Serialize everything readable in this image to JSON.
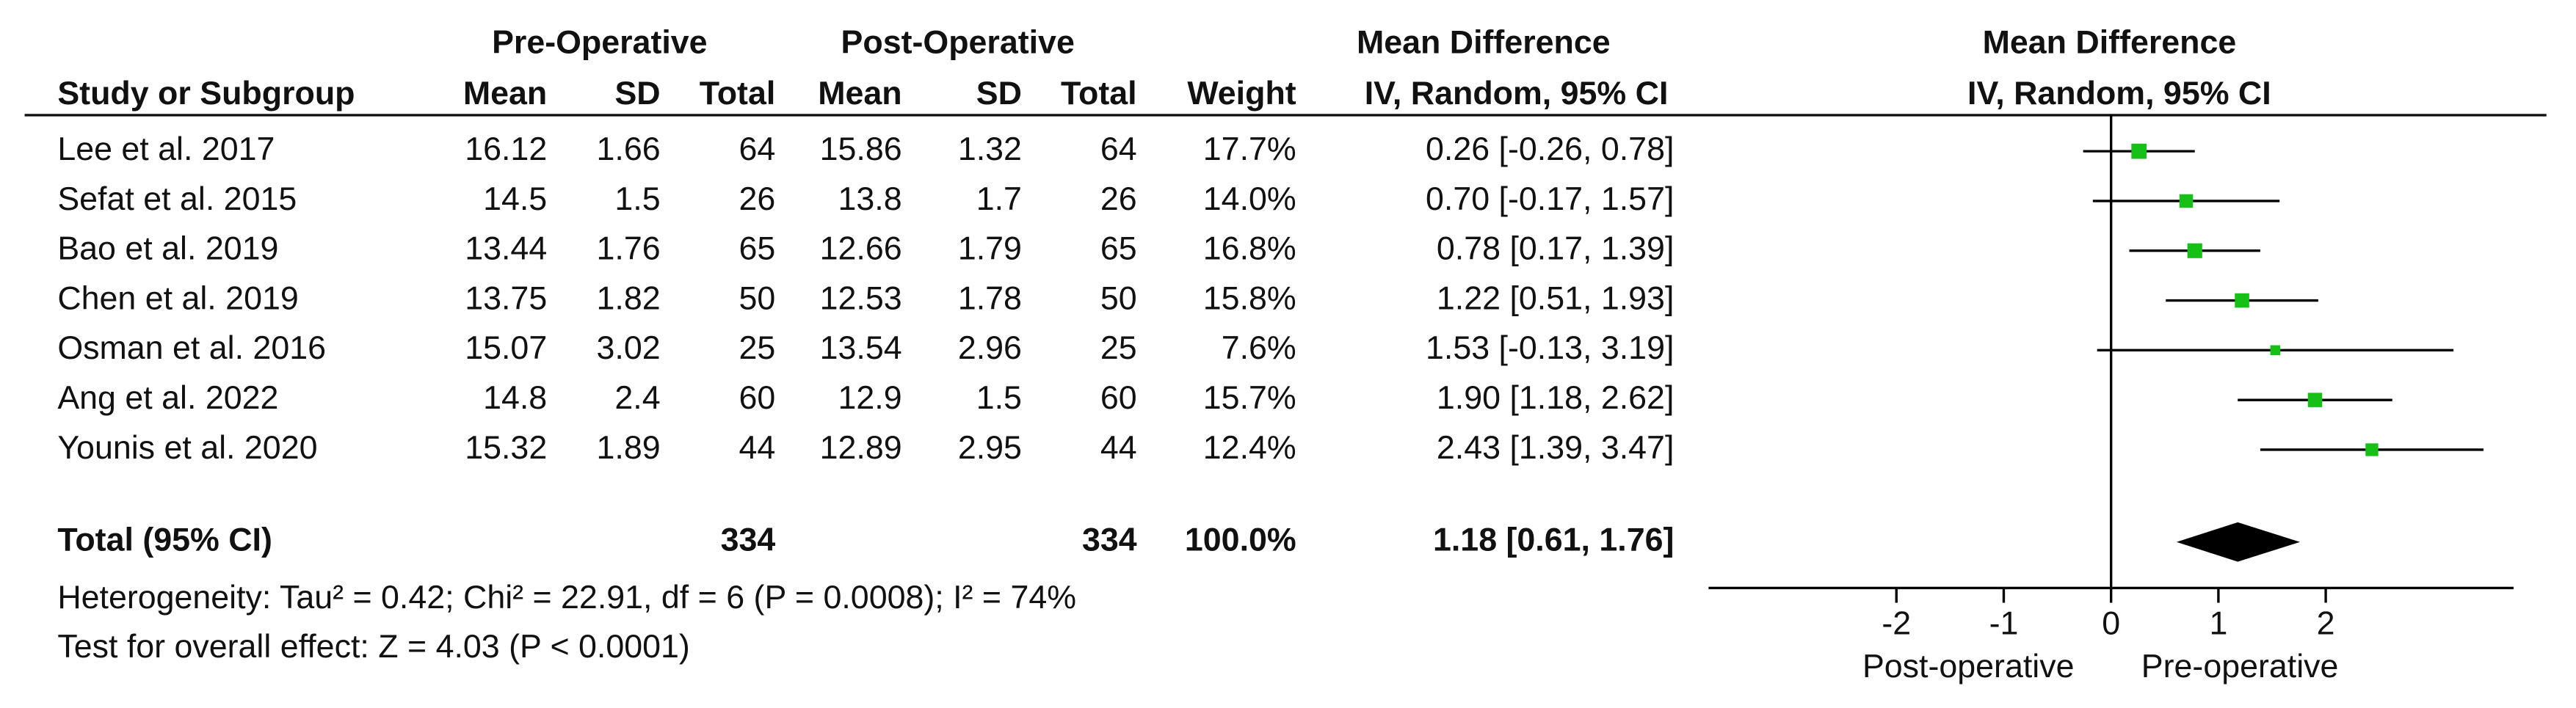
{
  "chart_data": {
    "type": "forest",
    "group_headers": {
      "pre": "Pre-Operative",
      "post": "Post-Operative",
      "table_md": "Mean Difference",
      "plot_md": "Mean Difference"
    },
    "columns": {
      "study": "Study or Subgroup",
      "pre_mean": "Mean",
      "pre_sd": "SD",
      "pre_total": "Total",
      "post_mean": "Mean",
      "post_sd": "SD",
      "post_total": "Total",
      "weight": "Weight",
      "table_method": "IV, Random, 95% CI",
      "plot_method": "IV, Random, 95% CI"
    },
    "studies": [
      {
        "name": "Lee et al. 2017",
        "pre": {
          "mean": 16.12,
          "sd": 1.66,
          "total": 64
        },
        "post": {
          "mean": 15.86,
          "sd": 1.32,
          "total": 64
        },
        "weight": 17.7,
        "weight_label": "17.7%",
        "md": 0.26,
        "ci": [
          -0.26,
          0.78
        ],
        "ci_label": "0.26 [-0.26, 0.78]"
      },
      {
        "name": "Sefat et al. 2015",
        "pre": {
          "mean": 14.5,
          "sd": 1.5,
          "total": 26
        },
        "post": {
          "mean": 13.8,
          "sd": 1.7,
          "total": 26
        },
        "weight": 14.0,
        "weight_label": "14.0%",
        "md": 0.7,
        "ci": [
          -0.17,
          1.57
        ],
        "ci_label": "0.70 [-0.17, 1.57]"
      },
      {
        "name": "Bao et al. 2019",
        "pre": {
          "mean": 13.44,
          "sd": 1.76,
          "total": 65
        },
        "post": {
          "mean": 12.66,
          "sd": 1.79,
          "total": 65
        },
        "weight": 16.8,
        "weight_label": "16.8%",
        "md": 0.78,
        "ci": [
          0.17,
          1.39
        ],
        "ci_label": "0.78 [0.17, 1.39]"
      },
      {
        "name": "Chen et al. 2019",
        "pre": {
          "mean": 13.75,
          "sd": 1.82,
          "total": 50
        },
        "post": {
          "mean": 12.53,
          "sd": 1.78,
          "total": 50
        },
        "weight": 15.8,
        "weight_label": "15.8%",
        "md": 1.22,
        "ci": [
          0.51,
          1.93
        ],
        "ci_label": "1.22 [0.51, 1.93]"
      },
      {
        "name": "Osman et al. 2016",
        "pre": {
          "mean": 15.07,
          "sd": 3.02,
          "total": 25
        },
        "post": {
          "mean": 13.54,
          "sd": 2.96,
          "total": 25
        },
        "weight": 7.6,
        "weight_label": "7.6%",
        "md": 1.53,
        "ci": [
          -0.13,
          3.19
        ],
        "ci_label": "1.53 [-0.13, 3.19]"
      },
      {
        "name": "Ang et al. 2022",
        "pre": {
          "mean": 14.8,
          "sd": 2.4,
          "total": 60
        },
        "post": {
          "mean": 12.9,
          "sd": 1.5,
          "total": 60
        },
        "weight": 15.7,
        "weight_label": "15.7%",
        "md": 1.9,
        "ci": [
          1.18,
          2.62
        ],
        "ci_label": "1.90 [1.18, 2.62]"
      },
      {
        "name": "Younis et al. 2020",
        "pre": {
          "mean": 15.32,
          "sd": 1.89,
          "total": 44
        },
        "post": {
          "mean": 12.89,
          "sd": 2.95,
          "total": 44
        },
        "weight": 12.4,
        "weight_label": "12.4%",
        "md": 2.43,
        "ci": [
          1.39,
          3.47
        ],
        "ci_label": "2.43 [1.39, 3.47]"
      }
    ],
    "total": {
      "name": "Total (95% CI)",
      "pre_total": 334,
      "post_total": 334,
      "weight": 100.0,
      "weight_label": "100.0%",
      "md": 1.18,
      "ci": [
        0.61,
        1.76
      ],
      "ci_label": "1.18 [0.61, 1.76]"
    },
    "heterogeneity": "Heterogeneity: Tau² = 0.42; Chi² = 22.91, df = 6 (P = 0.0008); I² = 74%",
    "overall_effect": "Test for overall effect: Z = 4.03 (P < 0.0001)",
    "xlim": [
      -3.75,
      3.75
    ],
    "xticks": [
      -2,
      -1,
      0,
      1,
      2
    ],
    "xlabel_left": "Post-operative",
    "xlabel_right": "Pre-operative",
    "marker_color": "#16c016",
    "diamond_color": "#000000"
  }
}
